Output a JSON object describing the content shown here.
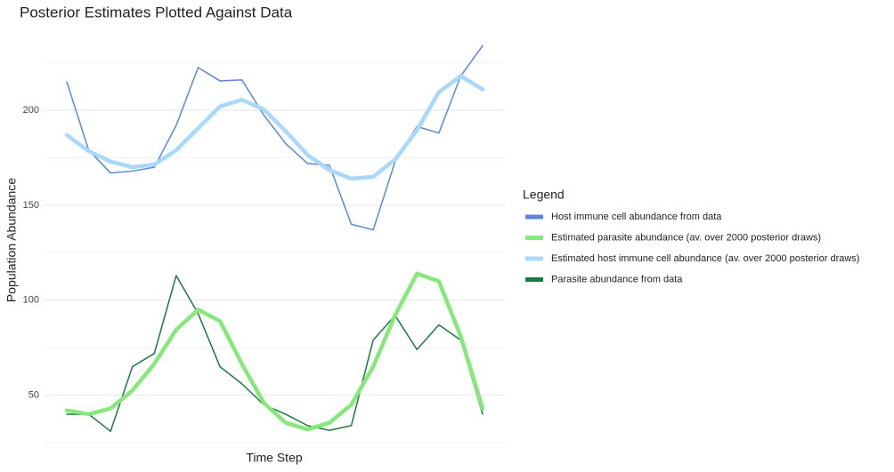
{
  "chart_data": {
    "type": "line",
    "title": "Posterior Estimates Plotted Against Data",
    "xlabel": "Time Step",
    "ylabel": "Population Abundance",
    "legend_title": "Legend",
    "legend": "right",
    "grid": true,
    "ylim": [
      25,
      237
    ],
    "yticks": [
      50,
      100,
      150,
      200
    ],
    "series": [
      {
        "name": "Host immune cell abundance from data",
        "color": "#5b87d8",
        "linewidth": 1.5,
        "values": [
          215,
          179,
          167,
          168,
          170,
          192,
          222.5,
          215.5,
          216,
          197.5,
          182.5,
          172,
          171,
          140,
          137,
          173,
          191.5,
          188,
          218,
          234
        ]
      },
      {
        "name": "Estimated parasite abundance (av. over 2000 posterior draws)",
        "color": "#86e87a",
        "linewidth": 4.5,
        "values": [
          42,
          40,
          43,
          52.5,
          66.5,
          84.5,
          95,
          89,
          66.5,
          46,
          35.5,
          32,
          35.5,
          45,
          65,
          92,
          114,
          110,
          81,
          43
        ]
      },
      {
        "name": "Estimated host immune cell abundance (av. over 2000 posterior draws)",
        "color": "#a8d8fb",
        "linewidth": 4.5,
        "values": [
          187,
          178.5,
          173,
          170,
          171.5,
          179,
          190.5,
          202,
          205.5,
          200.5,
          189,
          176.5,
          168.5,
          164,
          165,
          174,
          189.5,
          209.5,
          218,
          211
        ]
      },
      {
        "name": "Parasite abundance from data",
        "color": "#1a7a3c",
        "linewidth": 1.5,
        "values": [
          40,
          40,
          31,
          65,
          72,
          113,
          93,
          65,
          56,
          45,
          40,
          34,
          31.5,
          34,
          79,
          92,
          74,
          87,
          79,
          40
        ]
      }
    ]
  }
}
